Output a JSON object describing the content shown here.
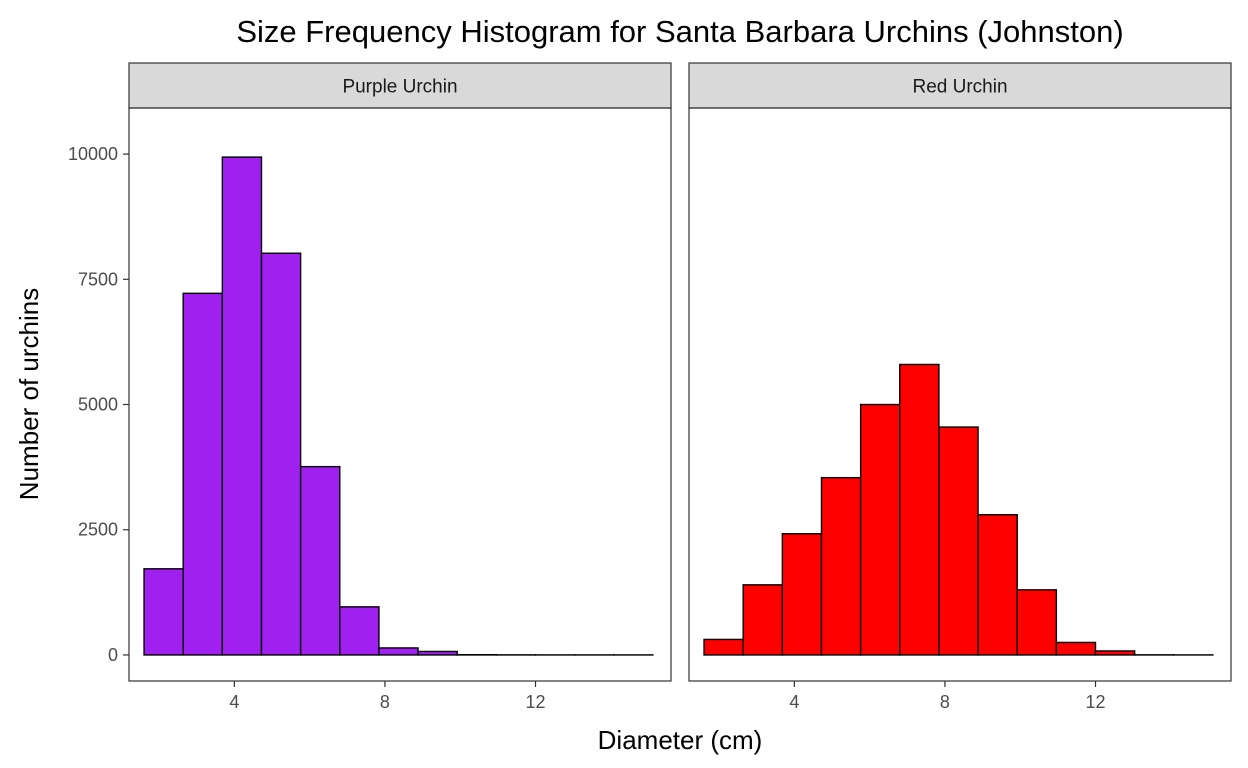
{
  "chart_data": {
    "type": "bar",
    "title": "Size Frequency Histogram for Santa Barbara Urchins (Johnston)",
    "xlabel": "Diameter (cm)",
    "ylabel": "Number of urchins",
    "xlim": [
      1.2,
      15.6
    ],
    "ylim": [
      -520,
      10920
    ],
    "x_ticks": [
      4,
      8,
      12
    ],
    "y_ticks": [
      0,
      2500,
      5000,
      7500,
      10000
    ],
    "grid": false,
    "legend": "none",
    "bin_width": 1.04,
    "panels": [
      {
        "name": "Purple Urchin",
        "color": "#a020f0",
        "bins": [
          {
            "x0": 1.6,
            "x1": 2.64,
            "count": 1720
          },
          {
            "x0": 2.64,
            "x1": 3.68,
            "count": 7220
          },
          {
            "x0": 3.68,
            "x1": 4.72,
            "count": 9940
          },
          {
            "x0": 4.72,
            "x1": 5.76,
            "count": 8020
          },
          {
            "x0": 5.76,
            "x1": 6.8,
            "count": 3760
          },
          {
            "x0": 6.8,
            "x1": 7.84,
            "count": 960
          },
          {
            "x0": 7.84,
            "x1": 8.88,
            "count": 140
          },
          {
            "x0": 8.88,
            "x1": 9.92,
            "count": 70
          },
          {
            "x0": 9.92,
            "x1": 10.96,
            "count": 5
          },
          {
            "x0": 10.96,
            "x1": 12.0,
            "count": 2
          },
          {
            "x0": 12.0,
            "x1": 13.04,
            "count": 1
          },
          {
            "x0": 13.04,
            "x1": 14.08,
            "count": 1
          },
          {
            "x0": 14.08,
            "x1": 15.12,
            "count": 1
          }
        ]
      },
      {
        "name": "Red Urchin",
        "color": "#ff0000",
        "bins": [
          {
            "x0": 1.6,
            "x1": 2.64,
            "count": 310
          },
          {
            "x0": 2.64,
            "x1": 3.68,
            "count": 1400
          },
          {
            "x0": 3.68,
            "x1": 4.72,
            "count": 2420
          },
          {
            "x0": 4.72,
            "x1": 5.76,
            "count": 3540
          },
          {
            "x0": 5.76,
            "x1": 6.8,
            "count": 5000
          },
          {
            "x0": 6.8,
            "x1": 7.84,
            "count": 5800
          },
          {
            "x0": 7.84,
            "x1": 8.88,
            "count": 4550
          },
          {
            "x0": 8.88,
            "x1": 9.92,
            "count": 2800
          },
          {
            "x0": 9.92,
            "x1": 10.96,
            "count": 1300
          },
          {
            "x0": 10.96,
            "x1": 12.0,
            "count": 250
          },
          {
            "x0": 12.0,
            "x1": 13.04,
            "count": 80
          },
          {
            "x0": 13.04,
            "x1": 14.08,
            "count": 3
          },
          {
            "x0": 14.08,
            "x1": 15.12,
            "count": 1
          }
        ]
      }
    ]
  }
}
